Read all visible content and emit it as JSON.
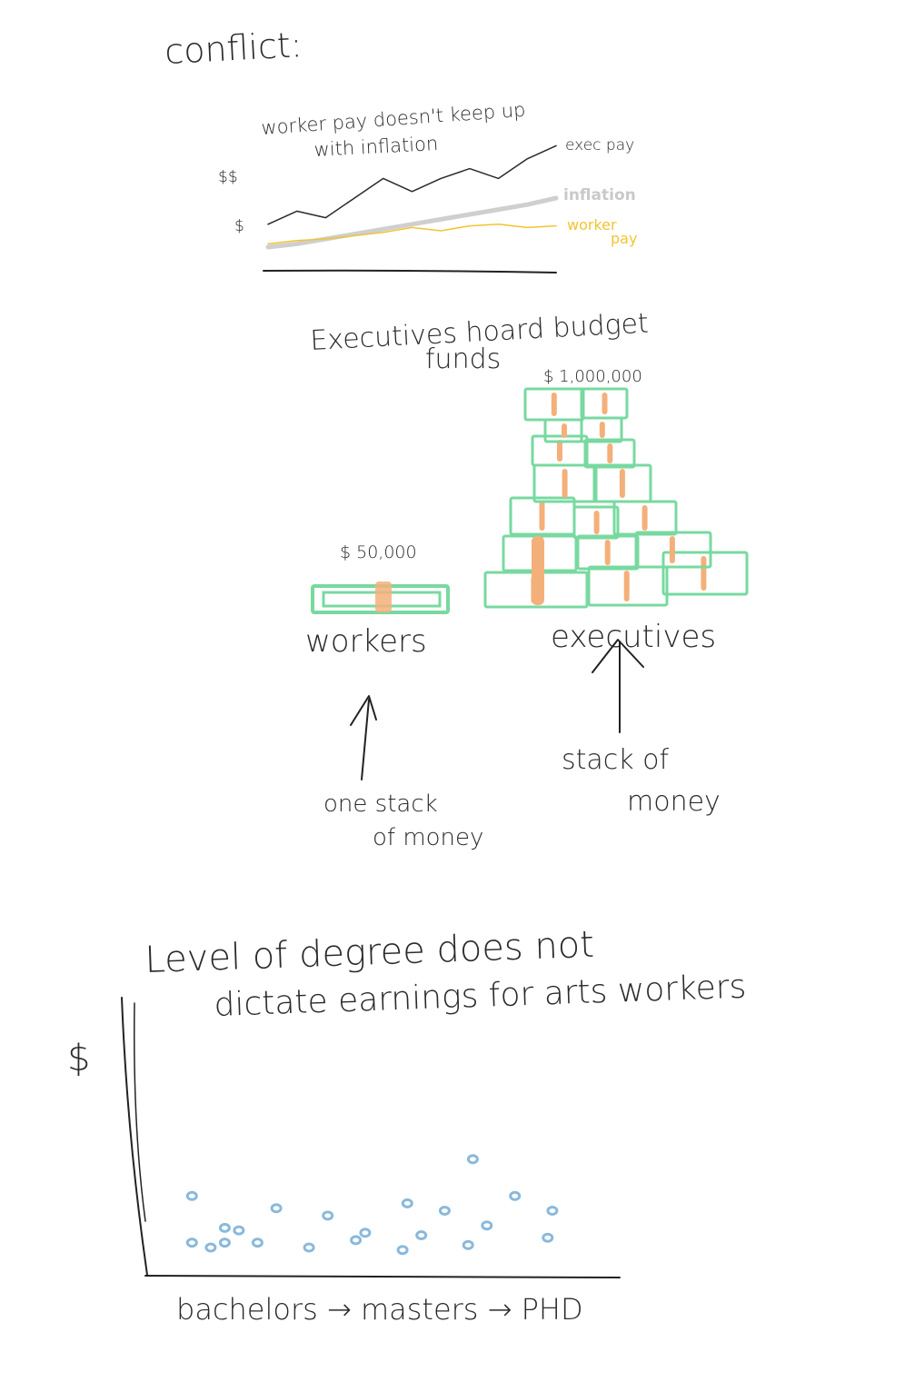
{
  "page_title": "conflict:",
  "colors": {
    "ink": "#2a2a2a",
    "inflation": "#cfcfcf",
    "worker_pay": "#f2c431",
    "money_outline": "#78d9a0",
    "money_band": "#f4b07a",
    "dots": "#8ab9dc"
  },
  "panels": {
    "inflation": {
      "title_line1": "worker pay doesn't keep up",
      "title_line2": "with inflation",
      "y_tick_high": "$$",
      "y_tick_low": "$",
      "series_labels": {
        "exec": "exec pay",
        "inflation": "inflation",
        "worker_line1": "worker",
        "worker_line2": "pay"
      }
    },
    "hoard": {
      "title_line1": "Executives hoard budget",
      "title_line2": "funds",
      "worker_amount": "$ 50,000",
      "exec_amount": "$ 1,000,000",
      "worker_label": "workers",
      "exec_label": "executives",
      "worker_note_line1": "one stack",
      "worker_note_line2": "of money",
      "exec_note_line1": "stack of",
      "exec_note_line2": "money"
    },
    "degree": {
      "title_line1": "Level of degree does not",
      "title_line2": "dictate earnings for arts workers",
      "y_label": "$",
      "x_label": "bachelors → masters → PHD"
    }
  },
  "chart_data": [
    {
      "type": "line",
      "title": "worker pay doesn't keep up with inflation",
      "ylabel_ticks": [
        "$",
        "$$"
      ],
      "x": [
        0,
        1,
        2,
        3,
        4,
        5,
        6,
        7,
        8,
        9,
        10
      ],
      "series": [
        {
          "name": "exec pay",
          "values": [
            1.2,
            1.6,
            1.4,
            2.0,
            2.6,
            2.2,
            2.6,
            2.9,
            2.6,
            3.2,
            3.6
          ]
        },
        {
          "name": "inflation",
          "values": [
            0.5,
            0.6,
            0.75,
            0.9,
            1.05,
            1.2,
            1.35,
            1.5,
            1.65,
            1.8,
            2.0
          ]
        },
        {
          "name": "worker pay",
          "values": [
            0.6,
            0.7,
            0.75,
            0.85,
            0.95,
            1.1,
            1.0,
            1.15,
            1.2,
            1.1,
            1.15
          ]
        }
      ]
    },
    {
      "type": "scatter",
      "title": "Level of degree does not dictate earnings for arts workers",
      "xlabel": "bachelors → masters → PHD",
      "ylabel": "$",
      "xlim": [
        0,
        10
      ],
      "ylim": [
        0,
        10
      ],
      "points": [
        [
          0.9,
          3.1
        ],
        [
          1.6,
          1.8
        ],
        [
          0.9,
          1.2
        ],
        [
          1.3,
          1.0
        ],
        [
          1.6,
          1.2
        ],
        [
          1.9,
          1.7
        ],
        [
          2.3,
          1.2
        ],
        [
          2.7,
          2.6
        ],
        [
          3.8,
          2.3
        ],
        [
          3.4,
          1.0
        ],
        [
          4.6,
          1.6
        ],
        [
          4.4,
          1.3
        ],
        [
          5.4,
          0.9
        ],
        [
          5.5,
          2.8
        ],
        [
          5.8,
          1.5
        ],
        [
          6.3,
          2.5
        ],
        [
          6.9,
          4.6
        ],
        [
          7.2,
          1.9
        ],
        [
          6.8,
          1.1
        ],
        [
          7.8,
          3.1
        ],
        [
          8.6,
          2.5
        ],
        [
          8.5,
          1.4
        ]
      ]
    }
  ]
}
